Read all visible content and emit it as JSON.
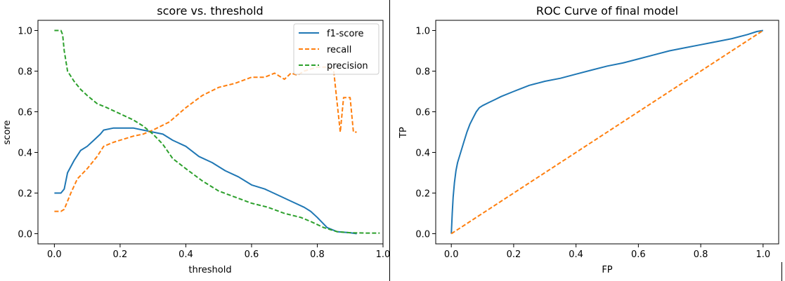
{
  "chart_data": [
    {
      "type": "line",
      "title": "score vs. threshold",
      "xlabel": "threshold",
      "ylabel": "score",
      "xlim": [
        -0.05,
        1.0
      ],
      "ylim": [
        -0.05,
        1.05
      ],
      "x_ticks": [
        0.0,
        0.2,
        0.4,
        0.6,
        0.8,
        1.0
      ],
      "y_ticks": [
        0.0,
        0.2,
        0.4,
        0.6,
        0.8,
        1.0
      ],
      "x_tick_labels": [
        "0.0",
        "0.2",
        "0.4",
        "0.6",
        "0.8",
        "1.0"
      ],
      "y_tick_labels": [
        "0.0",
        "0.2",
        "0.4",
        "0.6",
        "0.8",
        "1.0"
      ],
      "grid": false,
      "legend": "top-right",
      "series": [
        {
          "name": "f1-score",
          "color": "#1f77b4",
          "style": "solid",
          "points": [
            [
              0.0,
              0.2
            ],
            [
              0.02,
              0.2
            ],
            [
              0.03,
              0.22
            ],
            [
              0.04,
              0.3
            ],
            [
              0.06,
              0.36
            ],
            [
              0.08,
              0.41
            ],
            [
              0.1,
              0.43
            ],
            [
              0.12,
              0.46
            ],
            [
              0.14,
              0.49
            ],
            [
              0.15,
              0.51
            ],
            [
              0.18,
              0.52
            ],
            [
              0.2,
              0.52
            ],
            [
              0.24,
              0.52
            ],
            [
              0.27,
              0.51
            ],
            [
              0.3,
              0.5
            ],
            [
              0.33,
              0.49
            ],
            [
              0.36,
              0.46
            ],
            [
              0.4,
              0.43
            ],
            [
              0.44,
              0.38
            ],
            [
              0.48,
              0.35
            ],
            [
              0.52,
              0.31
            ],
            [
              0.56,
              0.28
            ],
            [
              0.6,
              0.24
            ],
            [
              0.64,
              0.22
            ],
            [
              0.68,
              0.19
            ],
            [
              0.72,
              0.16
            ],
            [
              0.76,
              0.13
            ],
            [
              0.78,
              0.11
            ],
            [
              0.8,
              0.08
            ],
            [
              0.83,
              0.03
            ],
            [
              0.86,
              0.01
            ],
            [
              0.9,
              0.005
            ],
            [
              0.92,
              0.0
            ]
          ]
        },
        {
          "name": "recall",
          "color": "#ff7f0e",
          "style": "dashed",
          "points": [
            [
              0.0,
              0.11
            ],
            [
              0.02,
              0.11
            ],
            [
              0.03,
              0.12
            ],
            [
              0.05,
              0.2
            ],
            [
              0.07,
              0.27
            ],
            [
              0.1,
              0.32
            ],
            [
              0.13,
              0.38
            ],
            [
              0.15,
              0.43
            ],
            [
              0.18,
              0.45
            ],
            [
              0.2,
              0.46
            ],
            [
              0.24,
              0.48
            ],
            [
              0.27,
              0.49
            ],
            [
              0.3,
              0.51
            ],
            [
              0.35,
              0.55
            ],
            [
              0.4,
              0.62
            ],
            [
              0.45,
              0.68
            ],
            [
              0.5,
              0.72
            ],
            [
              0.55,
              0.74
            ],
            [
              0.6,
              0.77
            ],
            [
              0.64,
              0.77
            ],
            [
              0.67,
              0.79
            ],
            [
              0.7,
              0.76
            ],
            [
              0.72,
              0.79
            ],
            [
              0.74,
              0.78
            ],
            [
              0.76,
              0.8
            ],
            [
              0.8,
              0.82
            ],
            [
              0.83,
              0.82
            ],
            [
              0.85,
              0.8
            ],
            [
              0.86,
              0.65
            ],
            [
              0.87,
              0.5
            ],
            [
              0.88,
              0.67
            ],
            [
              0.9,
              0.67
            ],
            [
              0.91,
              0.5
            ],
            [
              0.92,
              0.5
            ]
          ]
        },
        {
          "name": "precision",
          "color": "#2ca02c",
          "style": "dashed",
          "points": [
            [
              0.0,
              1.0
            ],
            [
              0.02,
              1.0
            ],
            [
              0.025,
              0.98
            ],
            [
              0.03,
              0.9
            ],
            [
              0.04,
              0.8
            ],
            [
              0.06,
              0.75
            ],
            [
              0.08,
              0.71
            ],
            [
              0.1,
              0.68
            ],
            [
              0.13,
              0.64
            ],
            [
              0.16,
              0.62
            ],
            [
              0.2,
              0.59
            ],
            [
              0.24,
              0.56
            ],
            [
              0.27,
              0.53
            ],
            [
              0.3,
              0.49
            ],
            [
              0.33,
              0.44
            ],
            [
              0.36,
              0.37
            ],
            [
              0.4,
              0.32
            ],
            [
              0.45,
              0.26
            ],
            [
              0.5,
              0.21
            ],
            [
              0.55,
              0.18
            ],
            [
              0.6,
              0.15
            ],
            [
              0.65,
              0.13
            ],
            [
              0.7,
              0.1
            ],
            [
              0.75,
              0.08
            ],
            [
              0.78,
              0.06
            ],
            [
              0.82,
              0.03
            ],
            [
              0.86,
              0.01
            ],
            [
              0.9,
              0.005
            ],
            [
              0.95,
              0.003
            ],
            [
              0.99,
              0.003
            ]
          ]
        }
      ]
    },
    {
      "type": "line",
      "title": "ROC Curve of final model",
      "xlabel": "FP",
      "ylabel": "TP",
      "xlim": [
        -0.05,
        1.05
      ],
      "ylim": [
        -0.05,
        1.05
      ],
      "x_ticks": [
        0.0,
        0.2,
        0.4,
        0.6,
        0.8,
        1.0
      ],
      "y_ticks": [
        0.0,
        0.2,
        0.4,
        0.6,
        0.8,
        1.0
      ],
      "x_tick_labels": [
        "0.0",
        "0.2",
        "0.4",
        "0.6",
        "0.8",
        "1.0"
      ],
      "y_tick_labels": [
        "0.0",
        "0.2",
        "0.4",
        "0.6",
        "0.8",
        "1.0"
      ],
      "grid": false,
      "legend": "none",
      "series": [
        {
          "color": "#1f77b4",
          "style": "solid",
          "points": [
            [
              0.0,
              0.0
            ],
            [
              0.003,
              0.1
            ],
            [
              0.006,
              0.18
            ],
            [
              0.01,
              0.25
            ],
            [
              0.015,
              0.31
            ],
            [
              0.02,
              0.35
            ],
            [
              0.03,
              0.4
            ],
            [
              0.04,
              0.45
            ],
            [
              0.05,
              0.5
            ],
            [
              0.06,
              0.54
            ],
            [
              0.07,
              0.57
            ],
            [
              0.08,
              0.6
            ],
            [
              0.09,
              0.62
            ],
            [
              0.1,
              0.63
            ],
            [
              0.12,
              0.645
            ],
            [
              0.14,
              0.66
            ],
            [
              0.16,
              0.675
            ],
            [
              0.2,
              0.7
            ],
            [
              0.25,
              0.73
            ],
            [
              0.3,
              0.75
            ],
            [
              0.35,
              0.765
            ],
            [
              0.4,
              0.785
            ],
            [
              0.45,
              0.805
            ],
            [
              0.5,
              0.825
            ],
            [
              0.55,
              0.84
            ],
            [
              0.6,
              0.86
            ],
            [
              0.65,
              0.88
            ],
            [
              0.7,
              0.9
            ],
            [
              0.75,
              0.915
            ],
            [
              0.8,
              0.93
            ],
            [
              0.85,
              0.945
            ],
            [
              0.9,
              0.96
            ],
            [
              0.95,
              0.98
            ],
            [
              0.98,
              0.995
            ],
            [
              1.0,
              1.0
            ]
          ]
        },
        {
          "color": "#ff7f0e",
          "style": "dashed",
          "points": [
            [
              0.0,
              0.0
            ],
            [
              1.0,
              1.0
            ]
          ]
        }
      ]
    }
  ]
}
